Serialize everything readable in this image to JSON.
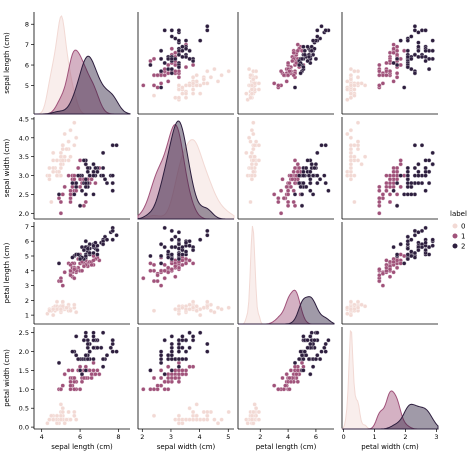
{
  "chart_data": {
    "type": "scatter",
    "variables": [
      "sepal length (cm)",
      "sepal width (cm)",
      "petal length (cm)",
      "petal width (cm)"
    ],
    "diag_kind": "kde",
    "hue_variable": "label",
    "legend": {
      "title": "label",
      "placement": "right",
      "labels": [
        "0",
        "1",
        "2"
      ],
      "colors": [
        "#f2d9d4",
        "#a0527a",
        "#2d1e3e"
      ]
    },
    "axis_ranges": {
      "sepal length (cm)": [
        3.6,
        8.6
      ],
      "sepal width (cm)": [
        1.85,
        4.55
      ],
      "petal length (cm)": [
        0.4,
        7.3
      ],
      "petal width (cm)": [
        -0.05,
        2.65
      ]
    },
    "ticks": {
      "sepal length (cm)": [
        "4",
        "6",
        "8"
      ],
      "sepal length (cm)_offdiag": [
        "5",
        "6",
        "7",
        "8"
      ],
      "sepal width (cm)": [
        "2",
        "3",
        "4",
        "5"
      ],
      "sepal width (cm)_offdiag": [
        "2.0",
        "2.5",
        "3.0",
        "3.5",
        "4.0",
        "4.5"
      ],
      "petal length (cm)": [
        "2",
        "4",
        "6"
      ],
      "petal length (cm)_offdiag": [
        "1",
        "2",
        "3",
        "4",
        "5",
        "6",
        "7"
      ],
      "petal width (cm)": [
        "0",
        "1",
        "2",
        "3"
      ],
      "petal width (cm)_offdiag": [
        "0.0",
        "0.5",
        "1.0",
        "1.5",
        "2.0",
        "2.5"
      ]
    },
    "series": [
      {
        "name": "0",
        "color": "#f2d9d4",
        "points": [
          [
            5.1,
            3.5,
            1.4,
            0.2
          ],
          [
            4.9,
            3.0,
            1.4,
            0.2
          ],
          [
            4.7,
            3.2,
            1.3,
            0.2
          ],
          [
            4.6,
            3.1,
            1.5,
            0.2
          ],
          [
            5.0,
            3.6,
            1.4,
            0.2
          ],
          [
            5.4,
            3.9,
            1.7,
            0.4
          ],
          [
            4.6,
            3.4,
            1.4,
            0.3
          ],
          [
            5.0,
            3.4,
            1.5,
            0.2
          ],
          [
            4.4,
            2.9,
            1.4,
            0.2
          ],
          [
            4.9,
            3.1,
            1.5,
            0.1
          ],
          [
            5.4,
            3.7,
            1.5,
            0.2
          ],
          [
            4.8,
            3.4,
            1.6,
            0.2
          ],
          [
            4.8,
            3.0,
            1.4,
            0.1
          ],
          [
            4.3,
            3.0,
            1.1,
            0.1
          ],
          [
            5.8,
            4.0,
            1.2,
            0.2
          ],
          [
            5.7,
            4.4,
            1.5,
            0.4
          ],
          [
            5.4,
            3.9,
            1.3,
            0.4
          ],
          [
            5.1,
            3.5,
            1.4,
            0.3
          ],
          [
            5.7,
            3.8,
            1.7,
            0.3
          ],
          [
            5.1,
            3.8,
            1.5,
            0.3
          ],
          [
            5.4,
            3.4,
            1.7,
            0.2
          ],
          [
            5.1,
            3.7,
            1.5,
            0.4
          ],
          [
            4.6,
            3.6,
            1.0,
            0.2
          ],
          [
            5.1,
            3.3,
            1.7,
            0.5
          ],
          [
            4.8,
            3.4,
            1.9,
            0.2
          ],
          [
            5.0,
            3.0,
            1.6,
            0.2
          ],
          [
            5.0,
            3.4,
            1.6,
            0.4
          ],
          [
            5.2,
            3.5,
            1.5,
            0.2
          ],
          [
            5.2,
            3.4,
            1.4,
            0.2
          ],
          [
            4.7,
            3.2,
            1.6,
            0.2
          ],
          [
            4.8,
            3.1,
            1.6,
            0.2
          ],
          [
            5.4,
            3.4,
            1.5,
            0.4
          ],
          [
            5.2,
            4.1,
            1.5,
            0.1
          ],
          [
            5.5,
            4.2,
            1.4,
            0.2
          ],
          [
            4.9,
            3.1,
            1.5,
            0.2
          ],
          [
            5.0,
            3.2,
            1.2,
            0.2
          ],
          [
            5.5,
            3.5,
            1.3,
            0.2
          ],
          [
            4.4,
            3.0,
            1.3,
            0.2
          ],
          [
            5.1,
            3.4,
            1.5,
            0.2
          ],
          [
            5.0,
            3.5,
            1.3,
            0.3
          ],
          [
            4.5,
            2.3,
            1.3,
            0.3
          ],
          [
            4.4,
            3.2,
            1.3,
            0.2
          ],
          [
            5.0,
            3.5,
            1.6,
            0.6
          ],
          [
            5.1,
            3.8,
            1.9,
            0.4
          ],
          [
            4.8,
            3.0,
            1.4,
            0.3
          ],
          [
            5.1,
            3.8,
            1.6,
            0.2
          ],
          [
            4.6,
            3.2,
            1.4,
            0.2
          ],
          [
            5.3,
            3.7,
            1.5,
            0.2
          ],
          [
            5.0,
            3.3,
            1.4,
            0.2
          ]
        ]
      },
      {
        "name": "1",
        "color": "#a0527a",
        "points": [
          [
            7.0,
            3.2,
            4.7,
            1.4
          ],
          [
            6.4,
            3.2,
            4.5,
            1.5
          ],
          [
            6.9,
            3.1,
            4.9,
            1.5
          ],
          [
            5.5,
            2.3,
            4.0,
            1.3
          ],
          [
            6.5,
            2.8,
            4.6,
            1.5
          ],
          [
            5.7,
            2.8,
            4.5,
            1.3
          ],
          [
            6.3,
            3.3,
            4.7,
            1.6
          ],
          [
            4.9,
            2.4,
            3.3,
            1.0
          ],
          [
            6.6,
            2.9,
            4.6,
            1.3
          ],
          [
            5.2,
            2.7,
            3.9,
            1.4
          ],
          [
            5.0,
            2.0,
            3.5,
            1.0
          ],
          [
            5.9,
            3.0,
            4.2,
            1.5
          ],
          [
            6.0,
            2.2,
            4.0,
            1.0
          ],
          [
            6.1,
            2.9,
            4.7,
            1.4
          ],
          [
            5.6,
            2.9,
            3.6,
            1.3
          ],
          [
            6.7,
            3.1,
            4.4,
            1.4
          ],
          [
            5.6,
            3.0,
            4.5,
            1.5
          ],
          [
            5.8,
            2.7,
            4.1,
            1.0
          ],
          [
            6.2,
            2.2,
            4.5,
            1.5
          ],
          [
            5.6,
            2.5,
            3.9,
            1.1
          ],
          [
            5.9,
            3.2,
            4.8,
            1.8
          ],
          [
            6.1,
            2.8,
            4.0,
            1.3
          ],
          [
            6.3,
            2.5,
            4.9,
            1.5
          ],
          [
            6.1,
            2.8,
            4.7,
            1.2
          ],
          [
            6.4,
            2.9,
            4.3,
            1.3
          ],
          [
            6.6,
            3.0,
            4.4,
            1.4
          ],
          [
            6.8,
            2.8,
            4.8,
            1.4
          ],
          [
            6.7,
            3.0,
            5.0,
            1.7
          ],
          [
            6.0,
            2.9,
            4.5,
            1.5
          ],
          [
            5.7,
            2.6,
            3.5,
            1.0
          ],
          [
            5.5,
            2.4,
            3.8,
            1.1
          ],
          [
            5.5,
            2.4,
            3.7,
            1.0
          ],
          [
            5.8,
            2.7,
            3.9,
            1.2
          ],
          [
            6.0,
            2.7,
            5.1,
            1.6
          ],
          [
            5.4,
            3.0,
            4.5,
            1.5
          ],
          [
            6.0,
            3.4,
            4.5,
            1.6
          ],
          [
            6.7,
            3.1,
            4.7,
            1.5
          ],
          [
            6.3,
            2.3,
            4.4,
            1.3
          ],
          [
            5.6,
            3.0,
            4.1,
            1.3
          ],
          [
            5.5,
            2.5,
            4.0,
            1.3
          ],
          [
            5.5,
            2.6,
            4.4,
            1.2
          ],
          [
            6.1,
            3.0,
            4.6,
            1.4
          ],
          [
            5.8,
            2.6,
            4.0,
            1.2
          ],
          [
            5.0,
            2.3,
            3.3,
            1.0
          ],
          [
            5.6,
            2.7,
            4.2,
            1.3
          ],
          [
            5.7,
            3.0,
            4.2,
            1.2
          ],
          [
            5.7,
            2.9,
            4.2,
            1.3
          ],
          [
            6.2,
            2.9,
            4.3,
            1.3
          ],
          [
            5.1,
            2.5,
            3.0,
            1.1
          ],
          [
            5.7,
            2.8,
            4.1,
            1.3
          ]
        ]
      },
      {
        "name": "2",
        "color": "#2d1e3e",
        "points": [
          [
            6.3,
            3.3,
            6.0,
            2.5
          ],
          [
            5.8,
            2.7,
            5.1,
            1.9
          ],
          [
            7.1,
            3.0,
            5.9,
            2.1
          ],
          [
            6.3,
            2.9,
            5.6,
            1.8
          ],
          [
            6.5,
            3.0,
            5.8,
            2.2
          ],
          [
            7.6,
            3.0,
            6.6,
            2.1
          ],
          [
            4.9,
            2.5,
            4.5,
            1.7
          ],
          [
            7.3,
            2.9,
            6.3,
            1.8
          ],
          [
            6.7,
            2.5,
            5.8,
            1.8
          ],
          [
            7.2,
            3.6,
            6.1,
            2.5
          ],
          [
            6.5,
            3.2,
            5.1,
            2.0
          ],
          [
            6.4,
            2.7,
            5.3,
            1.9
          ],
          [
            6.8,
            3.0,
            5.5,
            2.1
          ],
          [
            5.7,
            2.5,
            5.0,
            2.0
          ],
          [
            5.8,
            2.8,
            5.1,
            2.4
          ],
          [
            6.4,
            3.2,
            5.3,
            2.3
          ],
          [
            6.5,
            3.0,
            5.5,
            1.8
          ],
          [
            7.7,
            3.8,
            6.7,
            2.2
          ],
          [
            7.7,
            2.6,
            6.9,
            2.3
          ],
          [
            6.0,
            2.2,
            5.0,
            1.5
          ],
          [
            6.9,
            3.2,
            5.7,
            2.3
          ],
          [
            5.6,
            2.8,
            4.9,
            2.0
          ],
          [
            7.7,
            2.8,
            6.7,
            2.0
          ],
          [
            6.3,
            2.7,
            4.9,
            1.8
          ],
          [
            6.7,
            3.3,
            5.7,
            2.1
          ],
          [
            7.2,
            3.2,
            6.0,
            1.8
          ],
          [
            6.2,
            2.8,
            4.8,
            1.8
          ],
          [
            6.1,
            3.0,
            4.9,
            1.8
          ],
          [
            6.4,
            2.8,
            5.6,
            2.1
          ],
          [
            7.2,
            3.0,
            5.8,
            1.6
          ],
          [
            7.4,
            2.8,
            6.1,
            1.9
          ],
          [
            7.9,
            3.8,
            6.4,
            2.0
          ],
          [
            6.4,
            2.8,
            5.6,
            2.2
          ],
          [
            6.3,
            2.8,
            5.1,
            1.5
          ],
          [
            6.1,
            2.6,
            5.6,
            1.4
          ],
          [
            7.7,
            3.0,
            6.1,
            2.3
          ],
          [
            6.3,
            3.4,
            5.6,
            2.4
          ],
          [
            6.4,
            3.1,
            5.5,
            1.8
          ],
          [
            6.0,
            3.0,
            4.8,
            1.8
          ],
          [
            6.9,
            3.1,
            5.4,
            2.1
          ],
          [
            6.7,
            3.1,
            5.6,
            2.4
          ],
          [
            6.9,
            3.1,
            5.1,
            2.3
          ],
          [
            6.8,
            3.2,
            5.9,
            2.3
          ],
          [
            6.7,
            3.3,
            5.7,
            2.5
          ],
          [
            6.7,
            3.0,
            5.2,
            2.3
          ],
          [
            6.3,
            2.5,
            5.0,
            1.9
          ],
          [
            6.5,
            3.0,
            5.2,
            2.0
          ],
          [
            6.2,
            3.4,
            5.4,
            2.3
          ],
          [
            5.9,
            3.0,
            5.1,
            1.8
          ]
        ]
      }
    ]
  }
}
